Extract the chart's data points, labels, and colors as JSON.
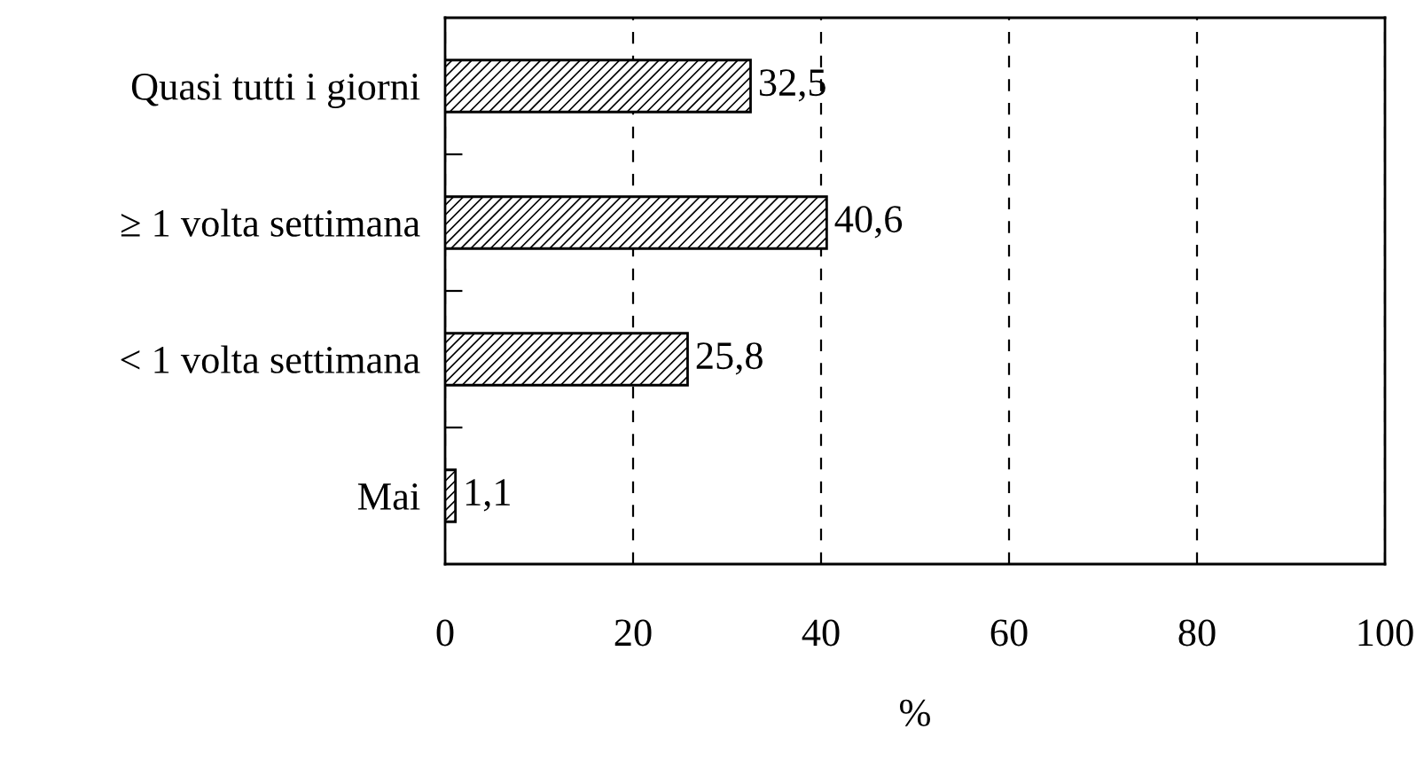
{
  "chart_data": {
    "type": "bar",
    "orientation": "horizontal",
    "categories": [
      "Quasi tutti i giorni",
      "≥ 1 volta settimana",
      "< 1 volta settimana",
      "Mai"
    ],
    "values": [
      32.5,
      40.6,
      25.8,
      1.1
    ],
    "value_labels": [
      "32,5",
      "40,6",
      "25,8",
      "1,1"
    ],
    "color": "#000000",
    "xlabel": "%",
    "xlim": [
      0,
      100
    ],
    "xticks": [
      0,
      20,
      40,
      60,
      80,
      100
    ],
    "grid": "x",
    "line_style": "dashed"
  }
}
